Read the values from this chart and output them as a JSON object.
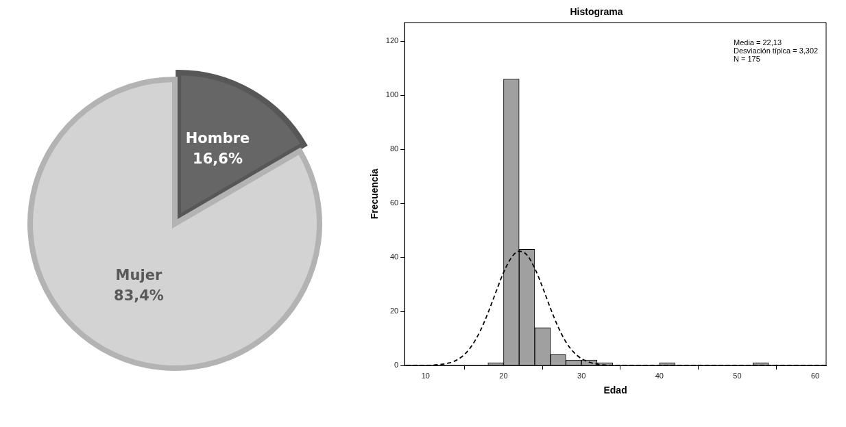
{
  "chart_data": [
    {
      "type": "pie",
      "categories": [
        "Hombre",
        "Mujer"
      ],
      "values": [
        16.6,
        83.4
      ],
      "colors": [
        "#666666",
        "#d3d3d3"
      ],
      "value_labels": [
        "16,6%",
        "83,4%"
      ],
      "legend": false
    },
    {
      "type": "histogram",
      "title": "Histograma",
      "xlabel": "Edad",
      "ylabel": "Frecuencia",
      "bins": [
        18,
        20,
        22,
        24,
        26,
        28,
        30,
        32,
        34,
        36,
        38,
        40,
        42,
        44,
        46,
        48,
        50,
        52,
        54
      ],
      "series": [
        {
          "type": "histogram",
          "color": "#a0a0a0",
          "values": [
            1,
            106,
            43,
            14,
            4,
            2,
            2,
            1,
            0,
            0,
            0,
            1,
            0,
            0,
            0,
            0,
            0,
            1
          ]
        },
        {
          "type": "line",
          "color": "#000000",
          "line_style": "dashed",
          "marker": "none",
          "x": [
            7.5,
            10,
            12,
            13,
            14,
            15,
            16,
            17,
            18,
            19,
            20,
            21,
            22,
            23,
            24,
            25,
            26,
            27,
            28,
            29,
            30,
            31,
            32,
            34,
            40,
            50,
            61.4
          ],
          "values": [
            0,
            0,
            0.4,
            0.9,
            2,
            4.1,
            7.6,
            12.7,
            19.4,
            27,
            34.4,
            39.9,
            42.3,
            40.9,
            36,
            29,
            21.3,
            14.3,
            8.7,
            4.9,
            2.5,
            1.2,
            0.5,
            0,
            0,
            0,
            0
          ]
        }
      ],
      "xlim": [
        7.3,
        61.4
      ],
      "xticks": [
        10,
        20,
        30,
        40,
        50,
        60
      ],
      "ylim": [
        0,
        127
      ],
      "yticks": [
        0,
        20,
        40,
        60,
        80,
        100,
        120
      ],
      "legend": false,
      "annotations": [
        "Media = 22,13",
        "Desviación típica = 3,302",
        "N = 175"
      ]
    }
  ]
}
